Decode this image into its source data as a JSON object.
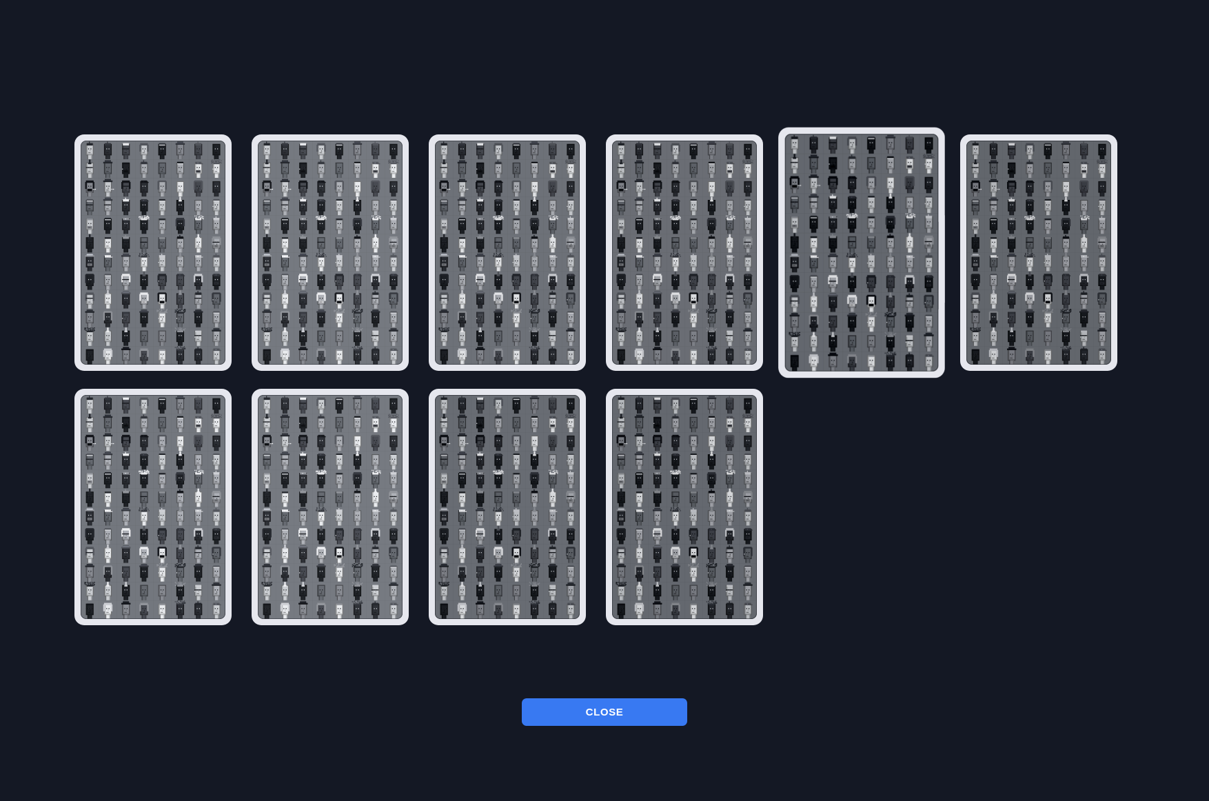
{
  "window": {
    "background_color": "#141824"
  },
  "modal": {
    "tile_border_color": "#e6e7ee",
    "sheet_background_color": "#71757c",
    "grid": {
      "columns": 8,
      "rows": 12,
      "tiles_top_row": 6,
      "tiles_bottom_row": 4
    },
    "tiles": [
      {
        "id": "variant-1",
        "brightness": 1.0,
        "contrast": 1.0,
        "highlighted": false
      },
      {
        "id": "variant-2",
        "brightness": 1.03,
        "contrast": 0.98,
        "highlighted": false
      },
      {
        "id": "variant-3",
        "brightness": 0.97,
        "contrast": 1.02,
        "highlighted": false
      },
      {
        "id": "variant-4",
        "brightness": 0.94,
        "contrast": 1.03,
        "highlighted": false
      },
      {
        "id": "variant-5",
        "brightness": 0.9,
        "contrast": 1.12,
        "highlighted": true
      },
      {
        "id": "variant-6",
        "brightness": 0.88,
        "contrast": 1.05,
        "highlighted": false
      },
      {
        "id": "variant-7",
        "brightness": 1.02,
        "contrast": 1.0,
        "highlighted": false
      },
      {
        "id": "variant-8",
        "brightness": 1.04,
        "contrast": 0.97,
        "highlighted": false
      },
      {
        "id": "variant-9",
        "brightness": 0.93,
        "contrast": 1.04,
        "highlighted": false
      },
      {
        "id": "variant-10",
        "brightness": 0.9,
        "contrast": 1.06,
        "highlighted": false
      }
    ],
    "close_button": {
      "label": "CLOSE",
      "background_color": "#3879f2",
      "text_color": "#ffffff"
    }
  },
  "sprite": {
    "seed": 1337,
    "skin_colors": [
      "#e3e5e8",
      "#c6c9cd",
      "#aaadb3",
      "#85888f",
      "#62666d",
      "#45484f",
      "#2b2e34",
      "#1e2126"
    ],
    "hair_colors": [
      "#121419",
      "#23262c",
      "#33363d",
      "#51545b",
      "#8e9197",
      "#c9cbd0",
      "#e8e9ec"
    ],
    "accent_color": "#d8dade"
  }
}
